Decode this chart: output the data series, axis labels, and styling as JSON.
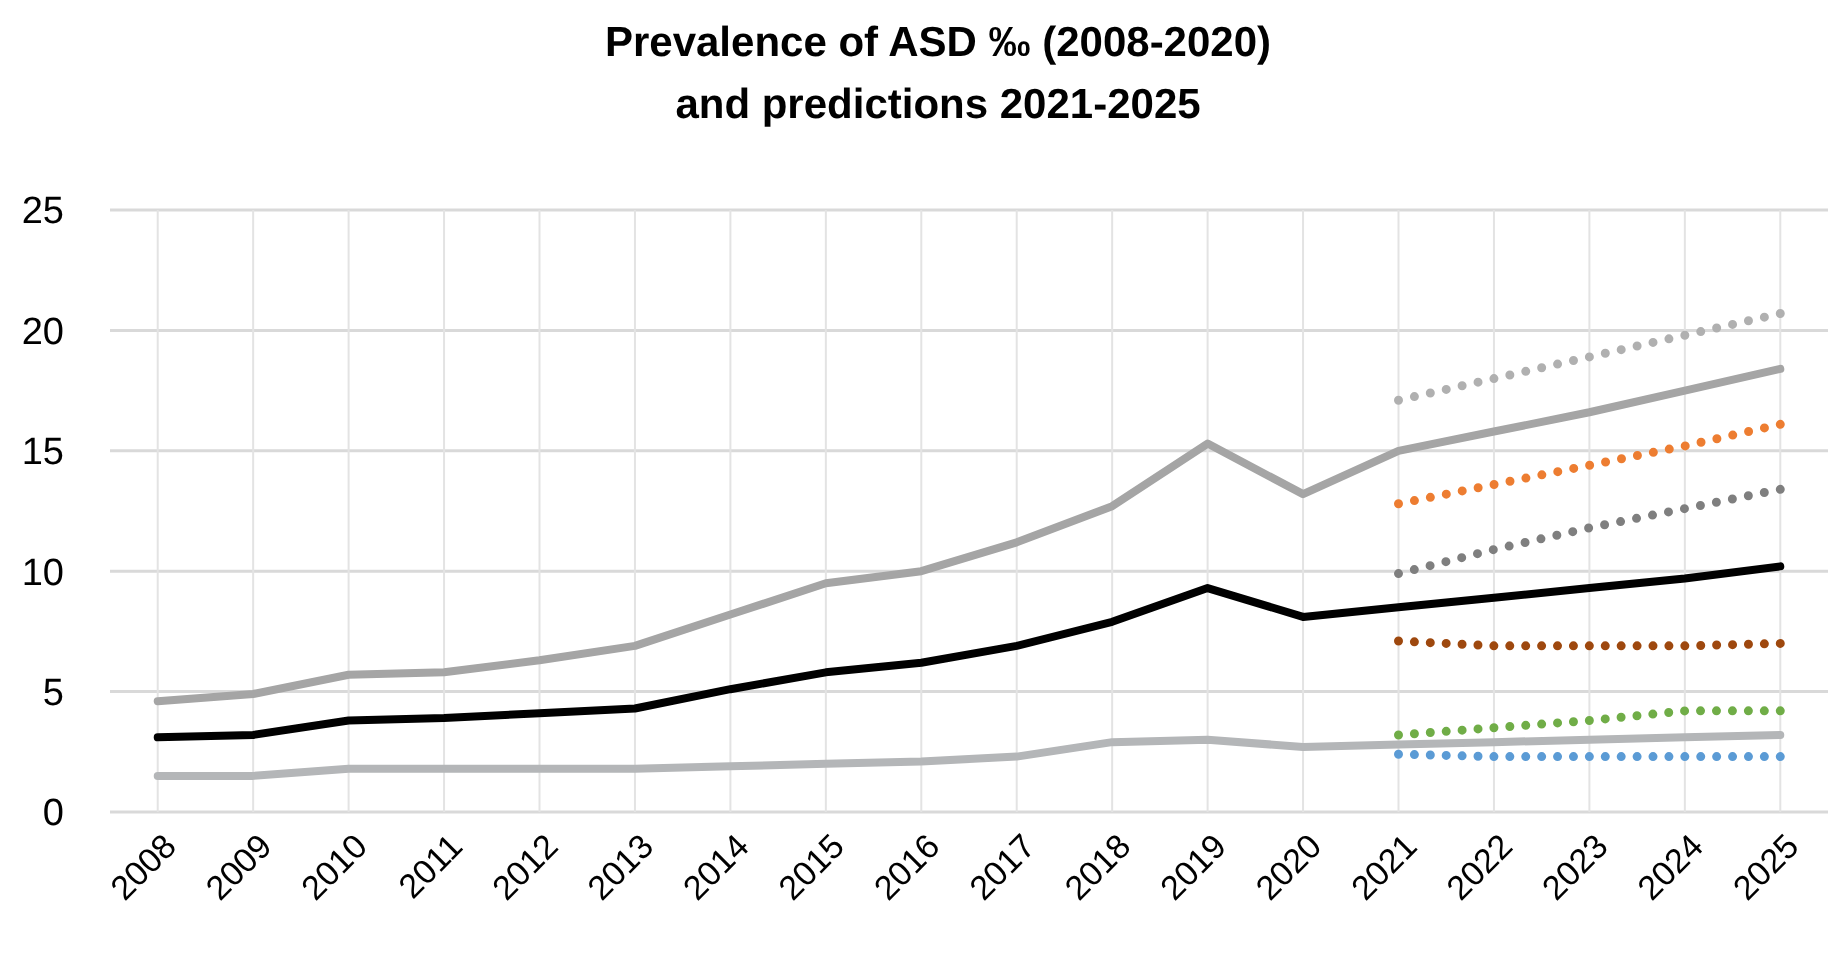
{
  "chart_data": {
    "type": "line",
    "title": "Prevalence of ASD ‰ (2008-2020)\nand predictions 2021-2025",
    "categories": [
      "2008",
      "2009",
      "2010",
      "2011",
      "2012",
      "2013",
      "2014",
      "2015",
      "2016",
      "2017",
      "2018",
      "2019",
      "2020",
      "2021",
      "2022",
      "2023",
      "2024",
      "2025"
    ],
    "series": [
      {
        "color": "#a5a5a5",
        "line_style": "solid",
        "values": [
          4.6,
          4.9,
          5.7,
          5.8,
          6.3,
          6.9,
          8.2,
          9.5,
          10.0,
          11.2,
          12.7,
          15.3,
          13.2,
          15.0,
          15.8,
          16.6,
          17.5,
          18.4
        ]
      },
      {
        "color": "#000000",
        "line_style": "solid",
        "values": [
          3.1,
          3.2,
          3.8,
          3.9,
          4.1,
          4.3,
          5.1,
          5.8,
          6.2,
          6.9,
          7.9,
          9.3,
          8.1,
          8.5,
          8.9,
          9.3,
          9.7,
          10.2
        ]
      },
      {
        "color": "#b4b6b8",
        "line_style": "solid",
        "values": [
          1.5,
          1.5,
          1.8,
          1.8,
          1.8,
          1.8,
          1.9,
          2.0,
          2.1,
          2.3,
          2.9,
          3.0,
          2.7,
          2.8,
          2.9,
          3.0,
          3.1,
          3.2
        ]
      },
      {
        "color": "#b0b0b0",
        "line_style": "dotted",
        "values": [
          null,
          null,
          null,
          null,
          null,
          null,
          null,
          null,
          null,
          null,
          null,
          null,
          null,
          17.1,
          18.0,
          18.9,
          19.8,
          20.7
        ]
      },
      {
        "color": "#ed7d31",
        "line_style": "dotted",
        "values": [
          null,
          null,
          null,
          null,
          null,
          null,
          null,
          null,
          null,
          null,
          null,
          null,
          null,
          12.8,
          13.6,
          14.4,
          15.2,
          16.1
        ]
      },
      {
        "color": "#7f7f7f",
        "line_style": "dotted",
        "values": [
          null,
          null,
          null,
          null,
          null,
          null,
          null,
          null,
          null,
          null,
          null,
          null,
          null,
          9.9,
          10.9,
          11.8,
          12.6,
          13.4
        ]
      },
      {
        "color": "#9e480e",
        "line_style": "dotted",
        "values": [
          null,
          null,
          null,
          null,
          null,
          null,
          null,
          null,
          null,
          null,
          null,
          null,
          null,
          7.1,
          6.9,
          6.9,
          6.9,
          7.0
        ]
      },
      {
        "color": "#70ad47",
        "line_style": "dotted",
        "values": [
          null,
          null,
          null,
          null,
          null,
          null,
          null,
          null,
          null,
          null,
          null,
          null,
          null,
          3.2,
          3.5,
          3.8,
          4.2,
          4.2
        ]
      },
      {
        "color": "#5b9bd5",
        "line_style": "dotted",
        "values": [
          null,
          null,
          null,
          null,
          null,
          null,
          null,
          null,
          null,
          null,
          null,
          null,
          null,
          2.4,
          2.3,
          2.3,
          2.3,
          2.3
        ]
      }
    ],
    "ylim": [
      0,
      25
    ],
    "yticks": [
      0,
      5,
      10,
      15,
      20,
      25
    ],
    "grid": true,
    "marker": "none"
  }
}
